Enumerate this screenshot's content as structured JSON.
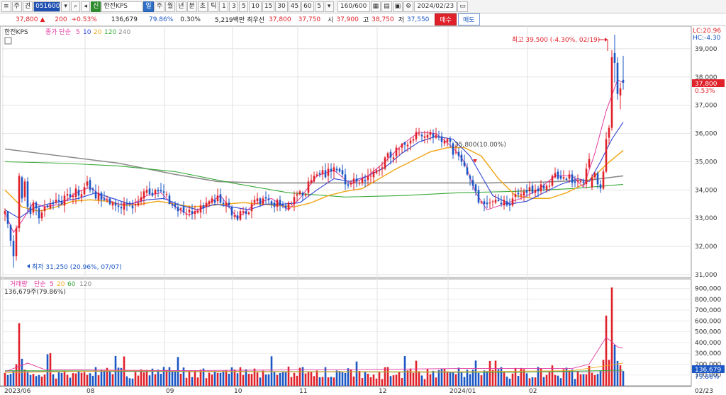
{
  "toolbar": {
    "items": [
      "주",
      "견",
      "051600",
      "한전KPS",
      "일",
      "주",
      "월",
      "년",
      "분",
      "초",
      "틱",
      "1",
      "3",
      "5",
      "10",
      "15",
      "30",
      "45",
      "60",
      "5"
    ],
    "code": "051600",
    "name": "한전KPS",
    "period_tabs": [
      "일",
      "주",
      "월",
      "년",
      "분",
      "초",
      "틱"
    ],
    "minute_opts": [
      "1",
      "3",
      "5",
      "10",
      "15",
      "30",
      "45",
      "60"
    ],
    "interval": "5",
    "count": "160/600",
    "date": "2024/02/23"
  },
  "quote": {
    "price": "37,800",
    "change": "200",
    "change_pct": "+0.53%",
    "volume": "136,679",
    "volume_ratio": "79.86%",
    "turnover_ratio": "0.30%",
    "amount": "5,219백만",
    "best_ask_label": "최우선",
    "best_ask": "37,800",
    "best_bid": "37,750",
    "open_label": "시",
    "open": "37,900",
    "high_label": "고",
    "high": "38,750",
    "low_label": "저",
    "low": "37,550",
    "buy_label": "매수",
    "sell_label": "매도"
  },
  "legend": {
    "name": "한전KPS",
    "ma_label": "종가 단순",
    "ma_periods": [
      "5",
      "10",
      "20",
      "120",
      "240"
    ],
    "vol_label": "거래량",
    "vol_ma_label": "단순",
    "vol_ma_periods": [
      "5",
      "20",
      "60",
      "120"
    ],
    "vol_current": "136,679주(79.86%)"
  },
  "annotations": {
    "high": "최고 39,500 (-4.30%, 02/19)",
    "low": "최저 31,250 (20.96%, 07/07)",
    "mid": "35,800(10.00%)",
    "lc": "LC:20.96",
    "hc": "HC:-4.30",
    "price_tag": "37,800",
    "pct_tag": "0.53%",
    "vol_tag": "136,679",
    "vol_pct": "79.86%",
    "last_date": "02/23"
  },
  "colors": {
    "up": "#e0212a",
    "down": "#1a56c4",
    "ma5": "#e03aa0",
    "ma10": "#2f45d6",
    "ma20": "#f0a81c",
    "ma120": "#3aaa3a",
    "ma240": "#8a8a8a"
  },
  "chart_data": {
    "type": "candlestick",
    "price_axis": {
      "ticks": [
        "39,000",
        "38,000",
        "37,000",
        "36,000",
        "35,000",
        "34,000",
        "33,000",
        "32,000",
        "31,000"
      ],
      "range": [
        30900,
        39800
      ]
    },
    "volume_axis": {
      "ticks": [
        "900,000",
        "800,000",
        "700,000",
        "600,000",
        "500,000",
        "400,000",
        "300,000",
        "200,000",
        "100,000"
      ],
      "range": [
        0,
        950000
      ]
    },
    "x_ticks": [
      {
        "label": "2023/06",
        "index": 0
      },
      {
        "label": "08",
        "index": 29
      },
      {
        "label": "09",
        "index": 57
      },
      {
        "label": "10",
        "index": 81
      },
      {
        "label": "11",
        "index": 104
      },
      {
        "label": "12",
        "index": 132
      },
      {
        "label": "2024/01",
        "index": 157
      },
      {
        "label": "02",
        "index": 185
      }
    ],
    "candles_first": [
      [
        33150,
        33350,
        32900,
        33250,
        120000
      ],
      [
        33250,
        33250,
        32650,
        32800,
        100000
      ],
      [
        32750,
        32800,
        32000,
        32200,
        110000
      ],
      [
        32200,
        32400,
        31250,
        31650,
        140000
      ],
      [
        31650,
        32750,
        31500,
        32650,
        200000
      ],
      [
        32650,
        34600,
        32500,
        34500,
        580000
      ],
      [
        34450,
        34500,
        33550,
        33700,
        250000
      ],
      [
        33750,
        34400,
        33600,
        34300,
        150000
      ],
      [
        34300,
        34450,
        33150,
        33400,
        130000
      ],
      [
        33400,
        33550,
        33000,
        33150,
        100000
      ],
      [
        33200,
        33650,
        33100,
        33550,
        110000
      ],
      [
        33550,
        33600,
        33100,
        33350,
        90000
      ],
      [
        33350,
        33450,
        32800,
        33000,
        100000
      ],
      [
        33000,
        33300,
        32900,
        33200,
        85000
      ]
    ],
    "candles_last": [
      [
        34100,
        34550,
        34000,
        34450,
        120000
      ],
      [
        34450,
        34650,
        34350,
        34600,
        100000
      ],
      [
        34600,
        34650,
        34050,
        34200,
        110000
      ],
      [
        34200,
        34350,
        33900,
        34050,
        140000
      ],
      [
        34050,
        34750,
        34000,
        34650,
        240000
      ],
      [
        34650,
        36050,
        34600,
        35800,
        650000
      ],
      [
        35850,
        36300,
        35600,
        36200,
        240000
      ],
      [
        36200,
        38950,
        36100,
        38700,
        910000
      ],
      [
        38850,
        39500,
        37800,
        38500,
        380000
      ],
      [
        38500,
        38700,
        37200,
        37400,
        230000
      ],
      [
        37350,
        37800,
        36850,
        37600,
        190000
      ],
      [
        37900,
        38750,
        37550,
        37800,
        136679
      ]
    ],
    "ma_lines": {
      "ma5": [
        [
          0,
          33200
        ],
        [
          3,
          32500
        ],
        [
          6,
          32900
        ],
        [
          10,
          33550
        ],
        [
          14,
          33400
        ],
        [
          20,
          33500
        ],
        [
          25,
          33900
        ],
        [
          30,
          34100
        ],
        [
          35,
          33700
        ],
        [
          40,
          33500
        ],
        [
          45,
          33500
        ],
        [
          50,
          33800
        ],
        [
          55,
          33900
        ],
        [
          60,
          33400
        ],
        [
          65,
          33100
        ],
        [
          70,
          33400
        ],
        [
          76,
          33800
        ],
        [
          82,
          33000
        ],
        [
          88,
          33500
        ],
        [
          94,
          33700
        ],
        [
          100,
          33300
        ],
        [
          104,
          33700
        ],
        [
          110,
          34500
        ],
        [
          116,
          34700
        ],
        [
          122,
          34200
        ],
        [
          128,
          34500
        ],
        [
          134,
          35000
        ],
        [
          140,
          35600
        ],
        [
          146,
          36050
        ],
        [
          152,
          36000
        ],
        [
          158,
          35500
        ],
        [
          162,
          35000
        ],
        [
          166,
          33900
        ],
        [
          170,
          33300
        ],
        [
          176,
          33500
        ],
        [
          182,
          33700
        ],
        [
          188,
          34000
        ],
        [
          194,
          34500
        ],
        [
          200,
          34500
        ],
        [
          204,
          34100
        ],
        [
          208,
          35300
        ],
        [
          212,
          36800
        ],
        [
          216,
          37900
        ],
        [
          218,
          37800
        ]
      ],
      "ma10": [
        [
          0,
          33300
        ],
        [
          5,
          33000
        ],
        [
          10,
          33350
        ],
        [
          15,
          33500
        ],
        [
          20,
          33600
        ],
        [
          26,
          33700
        ],
        [
          32,
          33900
        ],
        [
          38,
          33700
        ],
        [
          44,
          33500
        ],
        [
          50,
          33650
        ],
        [
          56,
          33700
        ],
        [
          62,
          33450
        ],
        [
          68,
          33300
        ],
        [
          74,
          33500
        ],
        [
          80,
          33400
        ],
        [
          86,
          33300
        ],
        [
          92,
          33500
        ],
        [
          98,
          33500
        ],
        [
          104,
          33550
        ],
        [
          110,
          34000
        ],
        [
          116,
          34400
        ],
        [
          122,
          34300
        ],
        [
          128,
          34500
        ],
        [
          134,
          34800
        ],
        [
          140,
          35300
        ],
        [
          146,
          35700
        ],
        [
          152,
          35900
        ],
        [
          158,
          35800
        ],
        [
          164,
          35200
        ],
        [
          168,
          34500
        ],
        [
          172,
          33800
        ],
        [
          178,
          33500
        ],
        [
          184,
          33600
        ],
        [
          190,
          33900
        ],
        [
          196,
          34200
        ],
        [
          202,
          34400
        ],
        [
          206,
          34300
        ],
        [
          210,
          35000
        ],
        [
          214,
          35800
        ],
        [
          218,
          36400
        ]
      ],
      "ma20": [
        [
          0,
          34000
        ],
        [
          6,
          33400
        ],
        [
          12,
          33250
        ],
        [
          18,
          33400
        ],
        [
          24,
          33600
        ],
        [
          30,
          33650
        ],
        [
          36,
          33600
        ],
        [
          42,
          33450
        ],
        [
          48,
          33500
        ],
        [
          54,
          33600
        ],
        [
          60,
          33500
        ],
        [
          66,
          33400
        ],
        [
          72,
          33450
        ],
        [
          78,
          33500
        ],
        [
          84,
          33550
        ],
        [
          90,
          33500
        ],
        [
          96,
          33450
        ],
        [
          102,
          33400
        ],
        [
          108,
          33550
        ],
        [
          114,
          33800
        ],
        [
          120,
          33950
        ],
        [
          126,
          34050
        ],
        [
          132,
          34400
        ],
        [
          138,
          34750
        ],
        [
          144,
          35050
        ],
        [
          150,
          35350
        ],
        [
          156,
          35500
        ],
        [
          162,
          35500
        ],
        [
          168,
          35200
        ],
        [
          174,
          34400
        ],
        [
          180,
          33800
        ],
        [
          186,
          33700
        ],
        [
          192,
          33700
        ],
        [
          198,
          33900
        ],
        [
          204,
          34200
        ],
        [
          208,
          34500
        ],
        [
          212,
          34900
        ],
        [
          218,
          35400
        ]
      ],
      "ma120": [
        [
          0,
          35000
        ],
        [
          20,
          34950
        ],
        [
          40,
          34850
        ],
        [
          60,
          34650
        ],
        [
          80,
          34250
        ],
        [
          100,
          33900
        ],
        [
          120,
          33750
        ],
        [
          140,
          33800
        ],
        [
          160,
          33900
        ],
        [
          180,
          33950
        ],
        [
          200,
          34050
        ],
        [
          218,
          34200
        ]
      ],
      "ma240": [
        [
          0,
          35450
        ],
        [
          20,
          35200
        ],
        [
          40,
          34950
        ],
        [
          60,
          34550
        ],
        [
          75,
          34300
        ],
        [
          90,
          34250
        ],
        [
          110,
          34250
        ],
        [
          130,
          34250
        ],
        [
          150,
          34250
        ],
        [
          170,
          34250
        ],
        [
          190,
          34280
        ],
        [
          206,
          34350
        ],
        [
          218,
          34500
        ]
      ]
    },
    "vol_ma_lines": {
      "ma5": [
        [
          0,
          130000
        ],
        [
          8,
          210000
        ],
        [
          14,
          150000
        ],
        [
          60,
          140000
        ],
        [
          120,
          150000
        ],
        [
          160,
          160000
        ],
        [
          200,
          160000
        ],
        [
          206,
          200000
        ],
        [
          212,
          450000
        ],
        [
          216,
          360000
        ],
        [
          218,
          350000
        ]
      ],
      "ma20": [
        [
          0,
          120000
        ],
        [
          40,
          140000
        ],
        [
          100,
          130000
        ],
        [
          160,
          130000
        ],
        [
          200,
          140000
        ],
        [
          208,
          170000
        ],
        [
          218,
          210000
        ]
      ],
      "ma60": [
        [
          0,
          140000
        ],
        [
          60,
          135000
        ],
        [
          120,
          130000
        ],
        [
          180,
          125000
        ],
        [
          218,
          145000
        ]
      ],
      "ma120": [
        [
          0,
          135000
        ],
        [
          80,
          130000
        ],
        [
          160,
          125000
        ],
        [
          218,
          130000
        ]
      ]
    }
  }
}
